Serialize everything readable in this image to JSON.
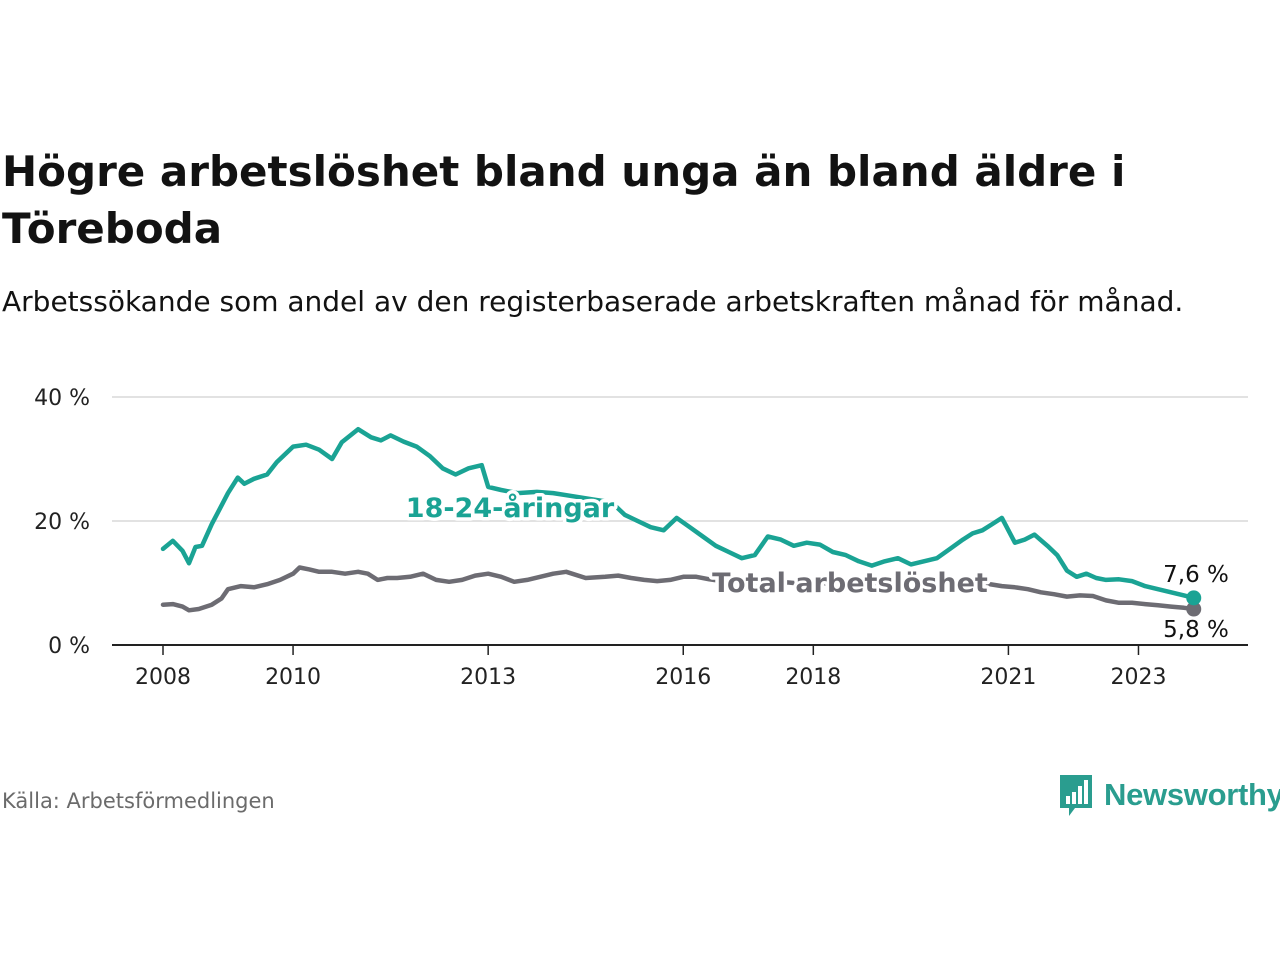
{
  "header": {
    "title": "Högre arbetslöshet bland unga än bland äldre i Töreboda",
    "subtitle": "Arbetssökande som andel av den registerbaserade arbetskraften månad för månad."
  },
  "footer": {
    "source": "Källa: Arbetsförmedlingen",
    "brand": "Newsworthy",
    "brand_icon": "bar-chart-speech-bubble-icon"
  },
  "colors": {
    "youth": "#1aa394",
    "total": "#6d6c73",
    "grid": "#d9d9d9",
    "axis": "#222222"
  },
  "chart_data": {
    "type": "line",
    "ylim": [
      0,
      40
    ],
    "yticks": [
      0,
      20,
      40
    ],
    "ytick_labels": [
      "0 %",
      "20 %",
      "40 %"
    ],
    "xlim": [
      2008.0,
      2023.9
    ],
    "xticks": [
      2008,
      2010,
      2013,
      2016,
      2018,
      2021,
      2023
    ],
    "xtick_labels": [
      "2008",
      "2010",
      "2013",
      "2016",
      "2018",
      "2021",
      "2023"
    ],
    "grid": true,
    "series": [
      {
        "name": "18-24-åringar",
        "label": "18-24-åringar",
        "end_label": "7,6 %",
        "x": [
          2008.0,
          2008.15,
          2008.3,
          2008.4,
          2008.5,
          2008.6,
          2008.75,
          2009.0,
          2009.15,
          2009.25,
          2009.4,
          2009.6,
          2009.75,
          2010.0,
          2010.2,
          2010.4,
          2010.6,
          2010.75,
          2011.0,
          2011.2,
          2011.35,
          2011.5,
          2011.7,
          2011.9,
          2012.1,
          2012.3,
          2012.5,
          2012.7,
          2012.9,
          2013.0,
          2013.2,
          2013.45,
          2013.75,
          2014.0,
          2014.3,
          2014.6,
          2014.9,
          2015.1,
          2015.3,
          2015.5,
          2015.7,
          2015.9,
          2016.1,
          2016.3,
          2016.5,
          2016.7,
          2016.9,
          2017.1,
          2017.3,
          2017.5,
          2017.7,
          2017.9,
          2018.1,
          2018.3,
          2018.5,
          2018.7,
          2018.9,
          2019.1,
          2019.3,
          2019.5,
          2019.7,
          2019.9,
          2020.1,
          2020.3,
          2020.45,
          2020.6,
          2020.75,
          2020.9,
          2021.1,
          2021.25,
          2021.4,
          2021.6,
          2021.75,
          2021.9,
          2022.05,
          2022.2,
          2022.35,
          2022.5,
          2022.7,
          2022.9,
          2023.1,
          2023.3,
          2023.5,
          2023.7,
          2023.85
        ],
        "values": [
          15.5,
          16.8,
          15.2,
          13.2,
          15.8,
          16.0,
          19.5,
          24.5,
          27.0,
          26.0,
          26.8,
          27.5,
          29.5,
          32.0,
          32.3,
          31.5,
          30.0,
          32.7,
          34.8,
          33.5,
          33.0,
          33.8,
          32.8,
          32.0,
          30.5,
          28.5,
          27.5,
          28.5,
          29.0,
          25.5,
          25.0,
          24.5,
          24.7,
          24.5,
          24.0,
          23.5,
          23.0,
          21.0,
          20.0,
          19.0,
          18.5,
          20.5,
          19.0,
          17.5,
          16.0,
          15.0,
          14.0,
          14.5,
          17.5,
          17.0,
          16.0,
          16.5,
          16.2,
          15.0,
          14.5,
          13.5,
          12.8,
          13.5,
          14.0,
          13.0,
          13.5,
          14.0,
          15.5,
          17.0,
          18.0,
          18.5,
          19.5,
          20.5,
          16.5,
          17.0,
          17.8,
          16.0,
          14.5,
          12.0,
          11.0,
          11.5,
          10.8,
          10.5,
          10.6,
          10.3,
          9.5,
          9.0,
          8.5,
          8.0,
          7.6
        ]
      },
      {
        "name": "Total arbetslöshet",
        "label": "Total arbetslöshet",
        "end_label": "5,8 %",
        "x": [
          2008.0,
          2008.15,
          2008.3,
          2008.4,
          2008.55,
          2008.75,
          2008.9,
          2009.0,
          2009.2,
          2009.4,
          2009.6,
          2009.8,
          2010.0,
          2010.1,
          2010.25,
          2010.4,
          2010.6,
          2010.8,
          2011.0,
          2011.15,
          2011.3,
          2011.45,
          2011.6,
          2011.8,
          2012.0,
          2012.2,
          2012.4,
          2012.6,
          2012.8,
          2013.0,
          2013.2,
          2013.4,
          2013.6,
          2013.8,
          2014.0,
          2014.2,
          2014.5,
          2014.8,
          2015.0,
          2015.2,
          2015.4,
          2015.6,
          2015.8,
          2016.0,
          2016.2,
          2016.4,
          2016.6,
          2016.8,
          2017.0,
          2017.3,
          2017.6,
          2017.9,
          2018.2,
          2018.5,
          2018.8,
          2019.1,
          2019.4,
          2019.7,
          2020.0,
          2020.3,
          2020.6,
          2020.9,
          2021.1,
          2021.3,
          2021.5,
          2021.7,
          2021.9,
          2022.1,
          2022.3,
          2022.5,
          2022.7,
          2022.9,
          2023.1,
          2023.3,
          2023.5,
          2023.7,
          2023.85
        ],
        "values": [
          6.5,
          6.6,
          6.2,
          5.6,
          5.8,
          6.5,
          7.5,
          9.0,
          9.5,
          9.3,
          9.8,
          10.5,
          11.5,
          12.5,
          12.2,
          11.8,
          11.8,
          11.5,
          11.8,
          11.5,
          10.5,
          10.8,
          10.8,
          11.0,
          11.5,
          10.5,
          10.2,
          10.5,
          11.2,
          11.5,
          11.0,
          10.2,
          10.5,
          11.0,
          11.5,
          11.8,
          10.8,
          11.0,
          11.2,
          10.8,
          10.5,
          10.3,
          10.5,
          11.0,
          11.0,
          10.6,
          10.3,
          10.0,
          10.2,
          10.0,
          10.1,
          9.8,
          10.0,
          9.8,
          9.6,
          9.8,
          10.0,
          9.9,
          10.0,
          10.1,
          10.0,
          9.5,
          9.3,
          9.0,
          8.5,
          8.2,
          7.8,
          8.0,
          7.9,
          7.2,
          6.8,
          6.8,
          6.6,
          6.4,
          6.2,
          6.0,
          5.8
        ]
      }
    ]
  }
}
